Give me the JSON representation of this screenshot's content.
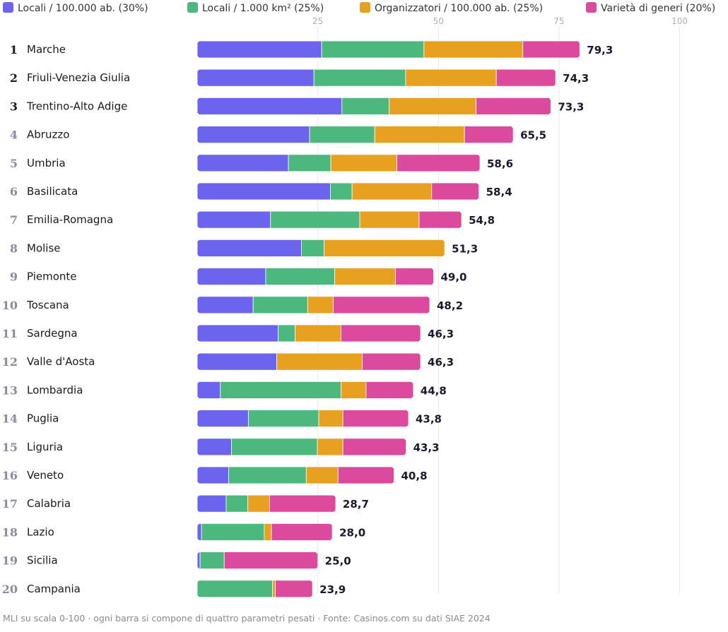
{
  "chart_data": {
    "type": "bar",
    "orientation": "horizontal",
    "stacked": true,
    "xlim": [
      0,
      100
    ],
    "ticks": [
      "25",
      "50",
      "75",
      "100"
    ],
    "grid": true,
    "legend_position": "top",
    "series": [
      {
        "name": "Locali / 100.000 ab. (30%)",
        "color": "#6c63ef"
      },
      {
        "name": "Locali / 1.000 km² (25%)",
        "color": "#4cb87e"
      },
      {
        "name": "Organizzatori / 100.000 ab. (25%)",
        "color": "#e8a020"
      },
      {
        "name": "Varietà di generi (20%)",
        "color": "#dc4a9e"
      }
    ],
    "rows": [
      {
        "rank": "1",
        "region": "Marche",
        "total": "79,3",
        "values": [
          25.8,
          21.2,
          20.5,
          11.8
        ]
      },
      {
        "rank": "2",
        "region": "Friuli-Venezia Giulia",
        "total": "74,3",
        "values": [
          24.2,
          19.0,
          18.8,
          12.3
        ]
      },
      {
        "rank": "3",
        "region": "Trentino-Alto Adige",
        "total": "73,3",
        "values": [
          30.0,
          9.8,
          18.0,
          15.5
        ]
      },
      {
        "rank": "4",
        "region": "Abruzzo",
        "total": "65,5",
        "values": [
          23.3,
          13.5,
          18.6,
          10.1
        ]
      },
      {
        "rank": "5",
        "region": "Umbria",
        "total": "58,6",
        "values": [
          18.9,
          8.8,
          13.7,
          17.2
        ]
      },
      {
        "rank": "6",
        "region": "Basilicata",
        "total": "58,4",
        "values": [
          27.6,
          4.5,
          16.5,
          9.8
        ]
      },
      {
        "rank": "7",
        "region": "Emilia-Romagna",
        "total": "54,8",
        "values": [
          15.2,
          18.5,
          12.3,
          8.8
        ]
      },
      {
        "rank": "8",
        "region": "Molise",
        "total": "51,3",
        "values": [
          21.6,
          4.7,
          25.0,
          0.0
        ]
      },
      {
        "rank": "9",
        "region": "Piemonte",
        "total": "49,0",
        "values": [
          14.2,
          14.3,
          12.6,
          7.9
        ]
      },
      {
        "rank": "10",
        "region": "Toscana",
        "total": "48,2",
        "values": [
          11.6,
          11.3,
          5.3,
          20.0
        ]
      },
      {
        "rank": "11",
        "region": "Sardegna",
        "total": "46,3",
        "values": [
          16.8,
          3.5,
          9.5,
          16.5
        ]
      },
      {
        "rank": "12",
        "region": "Valle d'Aosta",
        "total": "46,3",
        "values": [
          16.5,
          0.0,
          17.7,
          12.1
        ]
      },
      {
        "rank": "13",
        "region": "Lombardia",
        "total": "44,8",
        "values": [
          4.8,
          25.0,
          5.2,
          9.8
        ]
      },
      {
        "rank": "14",
        "region": "Puglia",
        "total": "43,8",
        "values": [
          10.6,
          14.6,
          5.0,
          13.6
        ]
      },
      {
        "rank": "15",
        "region": "Liguria",
        "total": "43,3",
        "values": [
          7.1,
          17.8,
          5.3,
          13.1
        ]
      },
      {
        "rank": "16",
        "region": "Veneto",
        "total": "40,8",
        "values": [
          6.5,
          16.1,
          6.6,
          11.6
        ]
      },
      {
        "rank": "17",
        "region": "Calabria",
        "total": "28,7",
        "values": [
          6.0,
          4.5,
          4.5,
          13.7
        ]
      },
      {
        "rank": "18",
        "region": "Lazio",
        "total": "28,0",
        "values": [
          0.9,
          13.0,
          1.5,
          12.6
        ]
      },
      {
        "rank": "19",
        "region": "Sicilia",
        "total": "25,0",
        "values": [
          0.6,
          5.0,
          0.0,
          19.4
        ]
      },
      {
        "rank": "20",
        "region": "Campania",
        "total": "23,9",
        "values": [
          0.0,
          15.6,
          0.6,
          7.7
        ]
      }
    ],
    "rank_colors": {
      "top": "#1a1a2e",
      "rest": "#8a8aa3"
    },
    "footnote": "MLI su scala 0-100 · ogni barra si compone di quattro parametri pesati · Fonte: Casinos.com su dati SIAE 2024"
  }
}
